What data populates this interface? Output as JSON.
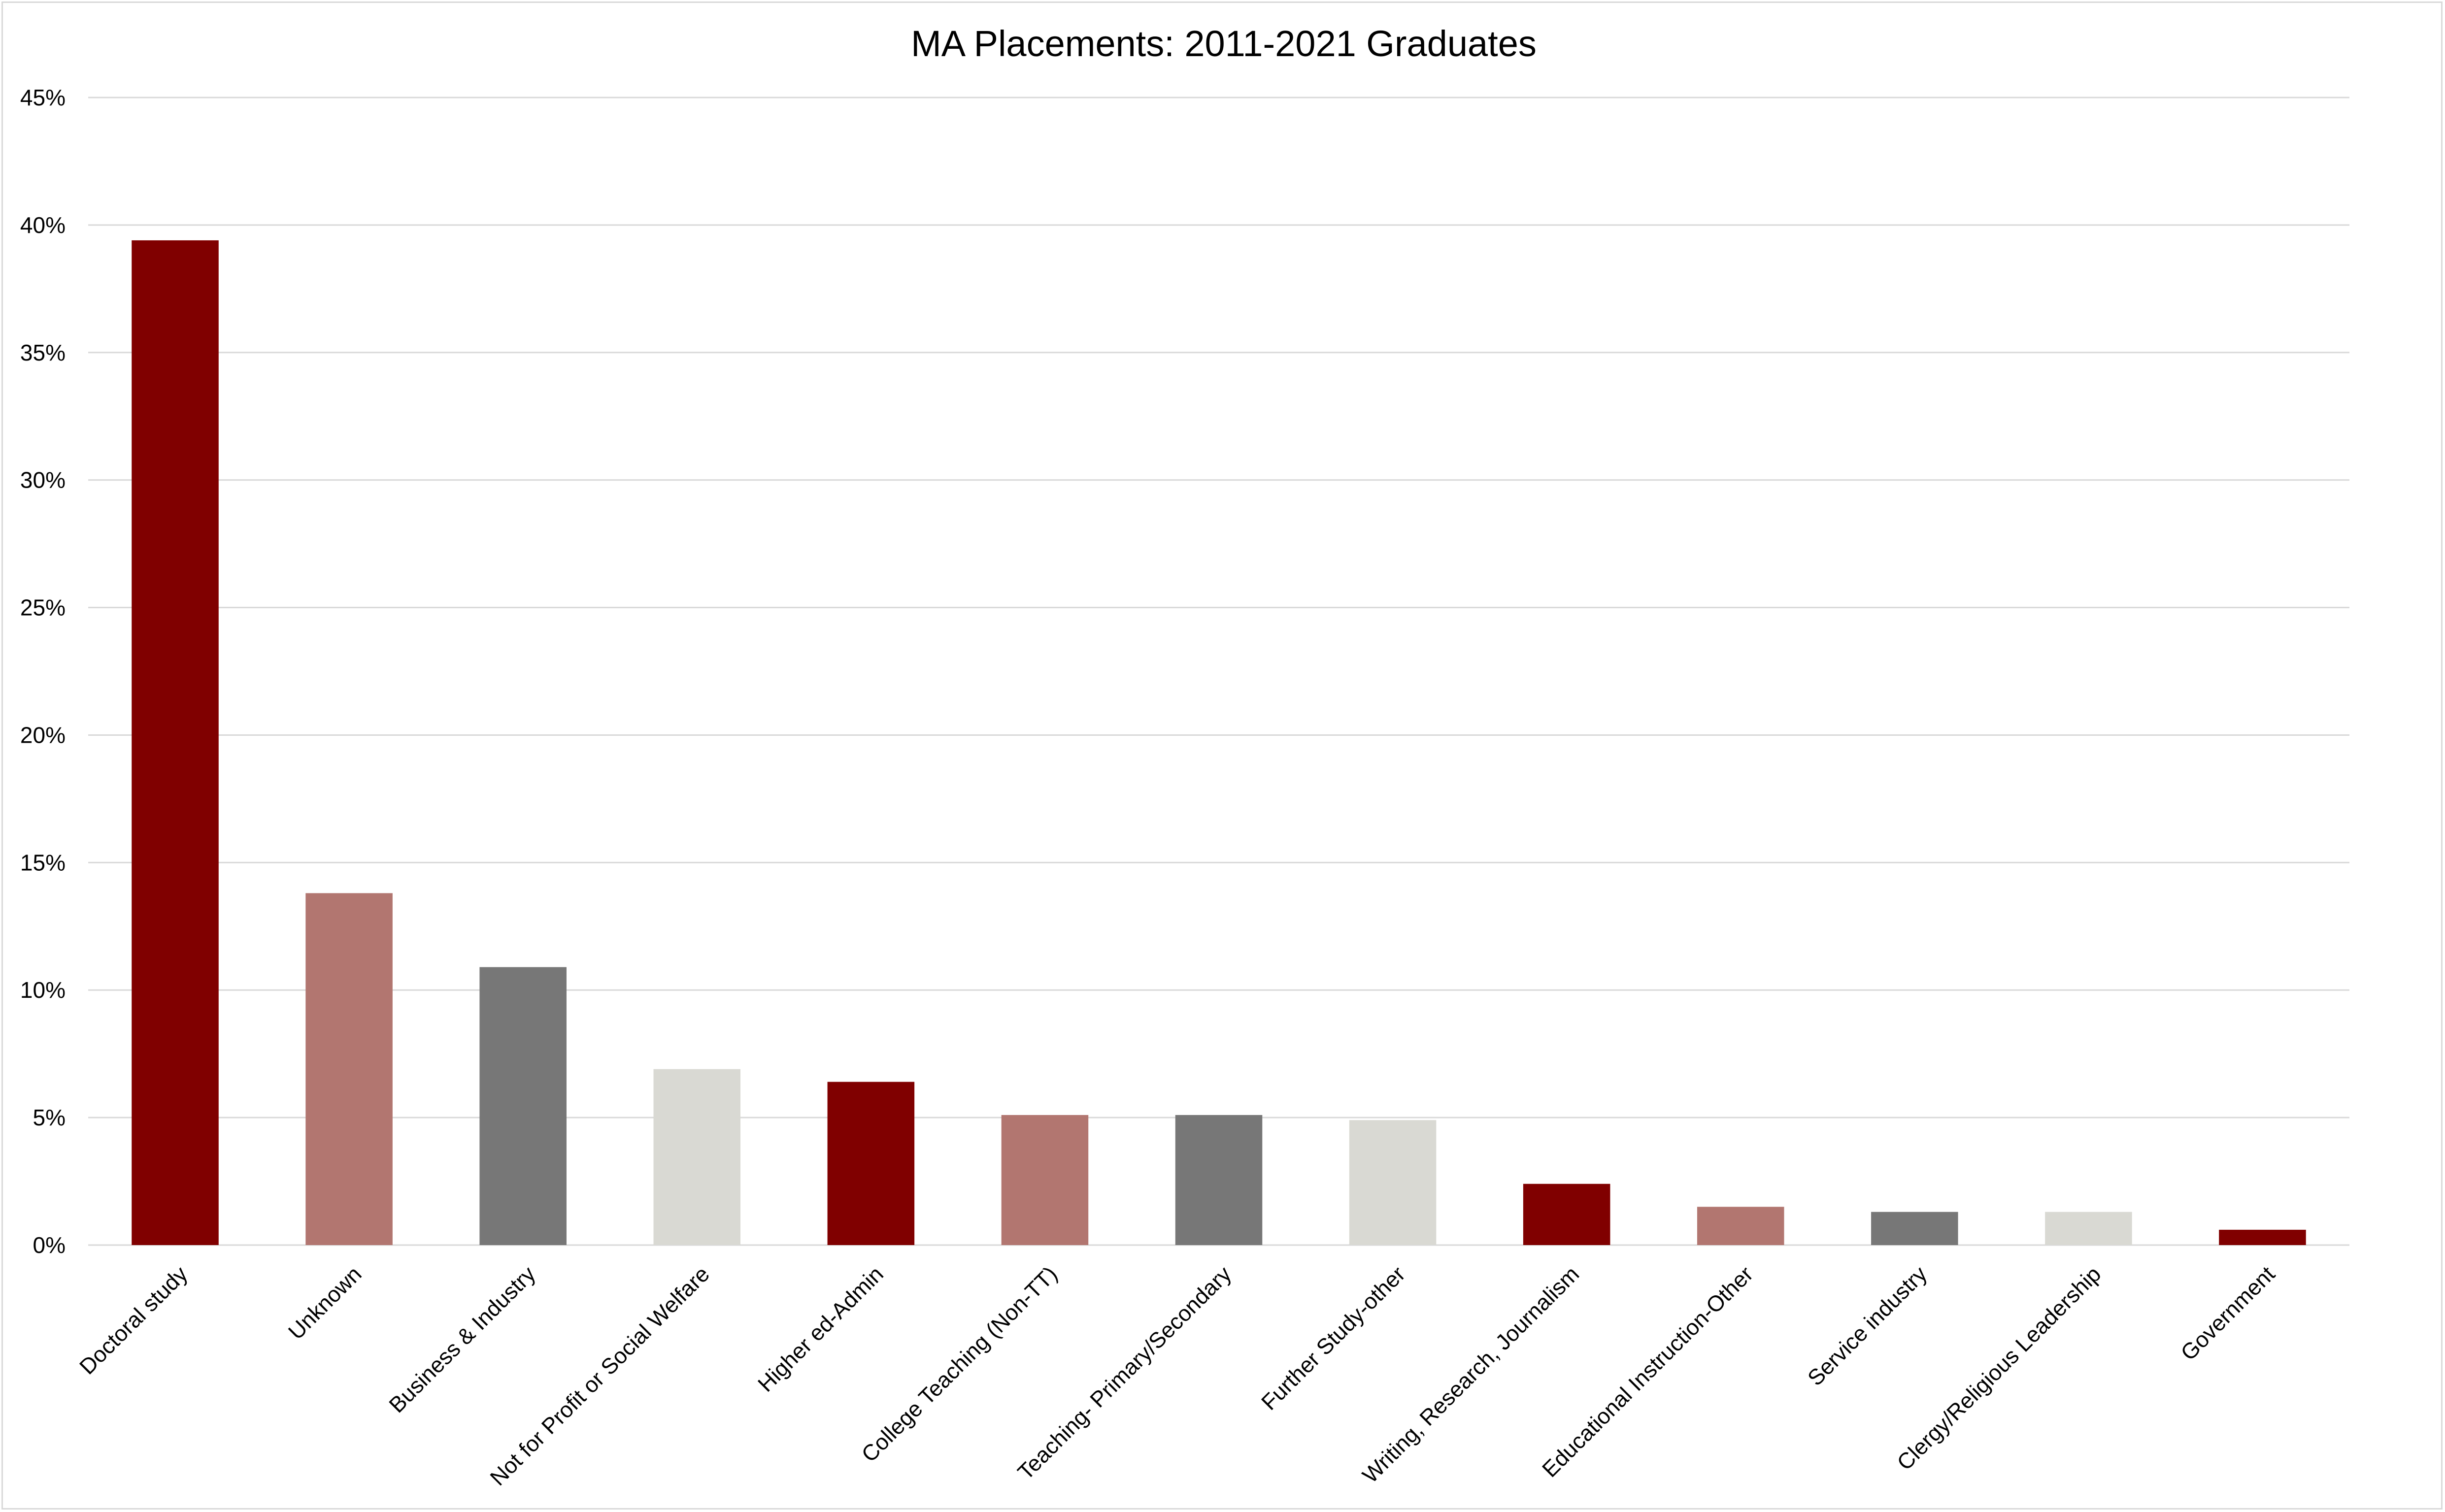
{
  "chart_data": {
    "type": "bar",
    "title": "MA Placements: 2011-2021 Graduates",
    "xlabel": "",
    "ylabel": "",
    "ylim": [
      0,
      45
    ],
    "y_ticks": [
      0,
      5,
      10,
      15,
      20,
      25,
      30,
      35,
      40,
      45
    ],
    "y_tick_labels": [
      "0%",
      "5%",
      "10%",
      "15%",
      "20%",
      "25%",
      "30%",
      "35%",
      "40%",
      "45%"
    ],
    "grid": true,
    "legend": "none",
    "categories": [
      "Doctoral study",
      "Unknown",
      "Business & Industry",
      "Not for Profit or Social Welfare",
      "Higher ed-Admin",
      "College Teaching (Non-TT)",
      "Teaching- Primary/Secondary",
      "Further Study-other",
      "Writing, Research, Journalism",
      "Educational Instruction-Other",
      "Service industry",
      "Clergy/Religious Leadership",
      "Government"
    ],
    "values": [
      39.4,
      13.8,
      10.9,
      6.9,
      6.4,
      5.1,
      5.1,
      4.9,
      2.4,
      1.5,
      1.3,
      1.3,
      0.6
    ],
    "bar_colors": [
      "#800000",
      "#b27670",
      "#777777",
      "#d9d9d3",
      "#800000",
      "#b27670",
      "#777777",
      "#d9d9d3",
      "#800000",
      "#b27670",
      "#777777",
      "#d9d9d3",
      "#800000"
    ]
  }
}
